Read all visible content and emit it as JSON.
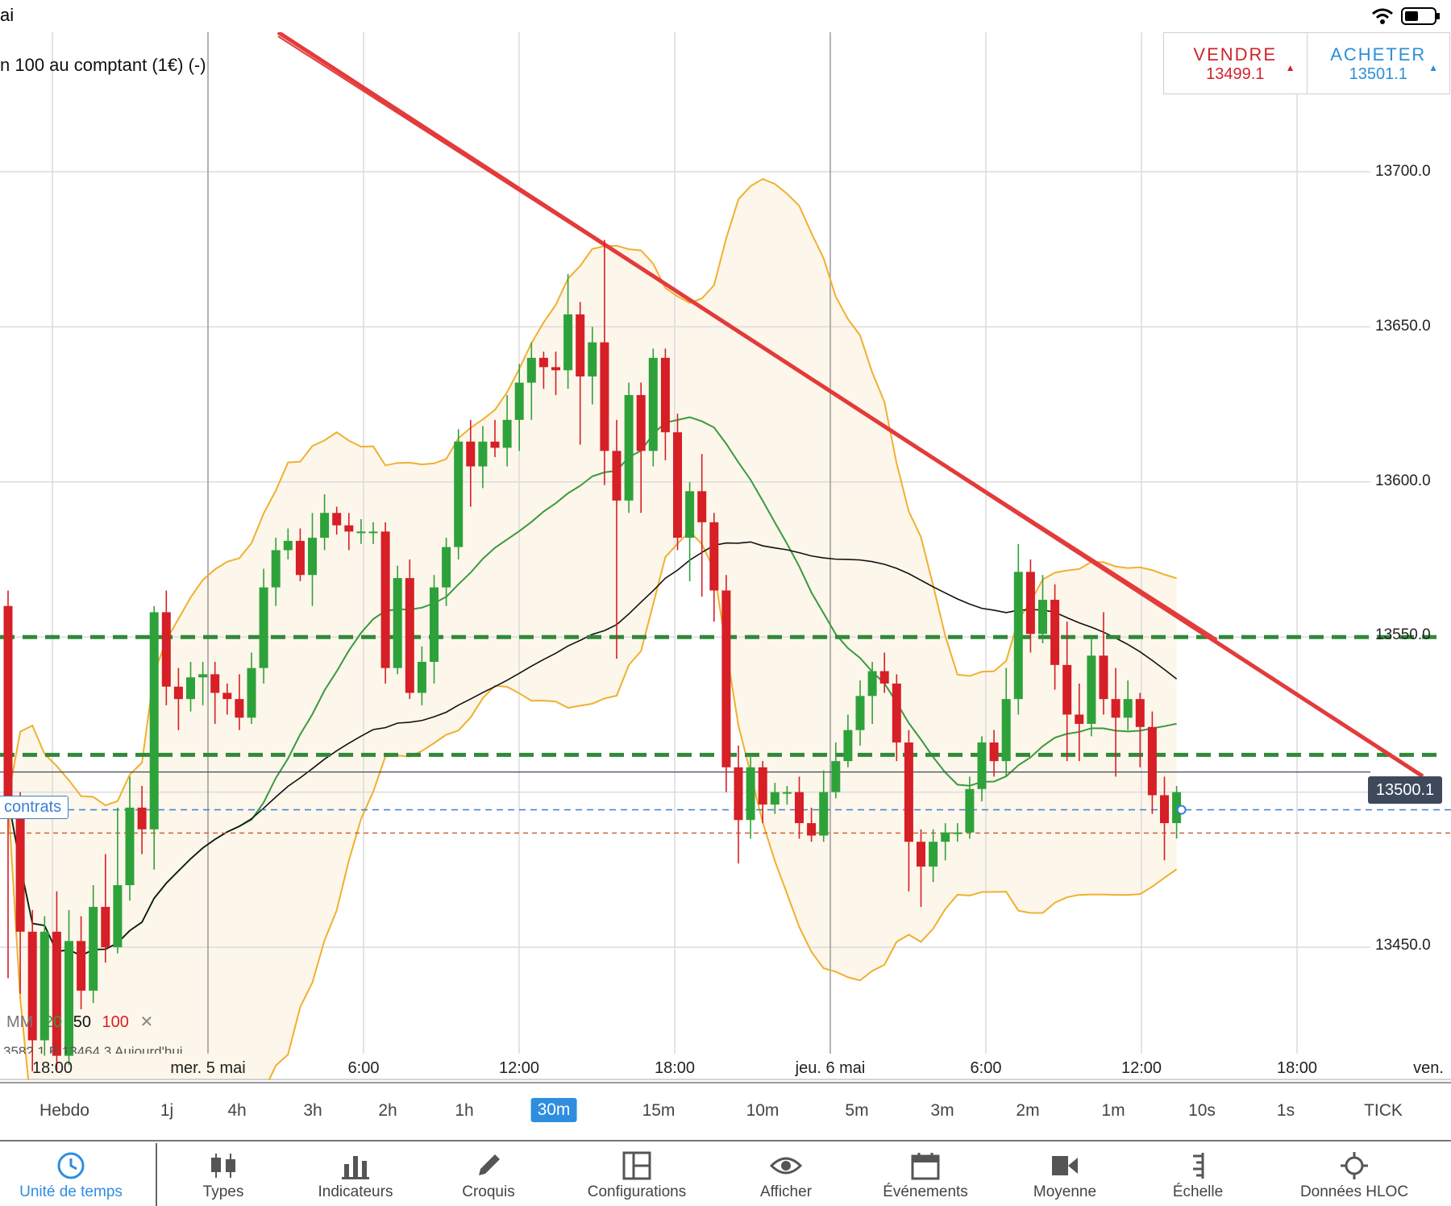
{
  "status": {
    "left_text": "ai"
  },
  "instrument": {
    "title": "n 100 au comptant (1€) (-)"
  },
  "trade": {
    "sell_label": "VENDRE",
    "sell_price": "13499.1",
    "buy_label": "ACHETER",
    "buy_price": "13501.1"
  },
  "current_price": "13500.1",
  "contracts_label": "contrats",
  "moving_averages": {
    "label": "MM",
    "p20": "20",
    "p50": "50",
    "p100": "100"
  },
  "info_line": "3582.1   B 13464.3   Aujourd'hui",
  "colors": {
    "up": "#2ea23a",
    "down": "#d61f26",
    "bollinger": "#f0b030",
    "ma20": "#3a9a40",
    "ma50": "#111111",
    "trend": "#e33b3b",
    "support": "#2f8a3a",
    "accent": "#2f8de0"
  },
  "chart_data": {
    "type": "candlestick",
    "y_ticks": [
      "13700.0",
      "13650.0",
      "13600.0",
      "13550.0",
      "13450.0"
    ],
    "x_ticks": [
      "18:00",
      "mer. 5 mai",
      "6:00",
      "12:00",
      "18:00",
      "jeu. 6 mai",
      "6:00",
      "12:00",
      "18:00",
      "ven."
    ],
    "ylim": [
      13410,
      13745
    ],
    "horizontal_levels": [
      13550,
      13512
    ],
    "position_level": 13494.3,
    "stop_level": 13486.8,
    "candles": [
      [
        13560,
        13498,
        13565,
        13440
      ],
      [
        13498,
        13455,
        13500,
        13435
      ],
      [
        13455,
        13420,
        13462,
        13410
      ],
      [
        13420,
        13455,
        13460,
        13415
      ],
      [
        13455,
        13415,
        13468,
        13410
      ],
      [
        13415,
        13452,
        13462,
        13412
      ],
      [
        13452,
        13436,
        13460,
        13430
      ],
      [
        13436,
        13463,
        13470,
        13432
      ],
      [
        13463,
        13450,
        13480,
        13445
      ],
      [
        13450,
        13470,
        13495,
        13448
      ],
      [
        13470,
        13495,
        13505,
        13465
      ],
      [
        13495,
        13488,
        13502,
        13480
      ],
      [
        13488,
        13558,
        13560,
        13475
      ],
      [
        13558,
        13534,
        13565,
        13528
      ],
      [
        13534,
        13530,
        13540,
        13520
      ],
      [
        13530,
        13537,
        13542,
        13526
      ],
      [
        13537,
        13538,
        13542,
        13528
      ],
      [
        13538,
        13532,
        13542,
        13522
      ],
      [
        13532,
        13530,
        13535,
        13525
      ],
      [
        13530,
        13524,
        13538,
        13520
      ],
      [
        13524,
        13540,
        13545,
        13522
      ],
      [
        13540,
        13566,
        13572,
        13535
      ],
      [
        13566,
        13578,
        13582,
        13560
      ],
      [
        13578,
        13581,
        13585,
        13575
      ],
      [
        13581,
        13570,
        13585,
        13568
      ],
      [
        13570,
        13582,
        13590,
        13560
      ],
      [
        13582,
        13590,
        13596,
        13578
      ],
      [
        13590,
        13586,
        13592,
        13583
      ],
      [
        13586,
        13584,
        13590,
        13578
      ],
      [
        13584,
        13584,
        13588,
        13580
      ],
      [
        13584,
        13584,
        13587,
        13580
      ],
      [
        13584,
        13540,
        13587,
        13535
      ],
      [
        13540,
        13569,
        13573,
        13538
      ],
      [
        13569,
        13532,
        13575,
        13530
      ],
      [
        13532,
        13542,
        13547,
        13528
      ],
      [
        13542,
        13566,
        13570,
        13535
      ],
      [
        13566,
        13579,
        13582,
        13560
      ],
      [
        13579,
        13613,
        13617,
        13575
      ],
      [
        13613,
        13605,
        13620,
        13592
      ],
      [
        13605,
        13613,
        13618,
        13598
      ],
      [
        13613,
        13611,
        13620,
        13608
      ],
      [
        13611,
        13620,
        13628,
        13605
      ],
      [
        13620,
        13632,
        13638,
        13610
      ],
      [
        13632,
        13640,
        13645,
        13620
      ],
      [
        13640,
        13637,
        13642,
        13630
      ],
      [
        13637,
        13636,
        13642,
        13628
      ],
      [
        13636,
        13654,
        13667,
        13630
      ],
      [
        13654,
        13634,
        13658,
        13612
      ],
      [
        13634,
        13645,
        13650,
        13625
      ],
      [
        13645,
        13610,
        13678,
        13599
      ],
      [
        13610,
        13594,
        13620,
        13543
      ],
      [
        13594,
        13628,
        13632,
        13590
      ],
      [
        13628,
        13610,
        13632,
        13590
      ],
      [
        13610,
        13640,
        13643,
        13605
      ],
      [
        13640,
        13616,
        13643,
        13607
      ],
      [
        13616,
        13582,
        13622,
        13578
      ],
      [
        13582,
        13597,
        13600,
        13568
      ],
      [
        13597,
        13587,
        13609,
        13563
      ],
      [
        13587,
        13565,
        13590,
        13555
      ],
      [
        13565,
        13508,
        13570,
        13500
      ],
      [
        13508,
        13491,
        13515,
        13477
      ],
      [
        13491,
        13508,
        13512,
        13485
      ],
      [
        13508,
        13496,
        13510,
        13490
      ],
      [
        13496,
        13500,
        13503,
        13493
      ],
      [
        13500,
        13500,
        13502,
        13496
      ],
      [
        13500,
        13490,
        13505,
        13485
      ],
      [
        13490,
        13486,
        13495,
        13484
      ],
      [
        13486,
        13500,
        13507,
        13484
      ],
      [
        13500,
        13510,
        13516,
        13498
      ],
      [
        13510,
        13520,
        13525,
        13508
      ],
      [
        13520,
        13531,
        13536,
        13515
      ],
      [
        13531,
        13539,
        13542,
        13522
      ],
      [
        13539,
        13535,
        13545,
        13532
      ],
      [
        13535,
        13516,
        13538,
        13510
      ],
      [
        13516,
        13484,
        13520,
        13468
      ],
      [
        13484,
        13476,
        13488,
        13463
      ],
      [
        13476,
        13484,
        13488,
        13471
      ],
      [
        13484,
        13487,
        13490,
        13478
      ],
      [
        13487,
        13487,
        13490,
        13484
      ],
      [
        13487,
        13501,
        13505,
        13485
      ],
      [
        13501,
        13516,
        13518,
        13497
      ],
      [
        13516,
        13510,
        13520,
        13505
      ],
      [
        13510,
        13530,
        13540,
        13505
      ],
      [
        13530,
        13571,
        13580,
        13525
      ],
      [
        13571,
        13551,
        13575,
        13545
      ],
      [
        13551,
        13562,
        13570,
        13548
      ],
      [
        13562,
        13541,
        13567,
        13533
      ],
      [
        13541,
        13525,
        13555,
        13510
      ],
      [
        13525,
        13522,
        13535,
        13510
      ],
      [
        13522,
        13544,
        13550,
        13518
      ],
      [
        13544,
        13530,
        13558,
        13525
      ],
      [
        13530,
        13524,
        13540,
        13505
      ],
      [
        13524,
        13530,
        13536,
        13520
      ],
      [
        13530,
        13521,
        13532,
        13508
      ],
      [
        13521,
        13499,
        13526,
        13493
      ],
      [
        13499,
        13490,
        13505,
        13478
      ],
      [
        13490,
        13500,
        13502,
        13485
      ]
    ]
  },
  "timeframes": [
    "Hebdo",
    "1j",
    "4h",
    "3h",
    "2h",
    "1h",
    "30m",
    "15m",
    "10m",
    "5m",
    "3m",
    "2m",
    "1m",
    "10s",
    "1s",
    "TICK"
  ],
  "active_timeframe": "30m",
  "toolbar": {
    "time_unit": "Unité de temps",
    "types": "Types",
    "indicators": "Indicateurs",
    "sketch": "Croquis",
    "configurations": "Configurations",
    "display": "Afficher",
    "events": "Événements",
    "average": "Moyenne",
    "scale": "Échelle",
    "hloc": "Données HLOC"
  },
  "icons": {
    "wifi": "wifi-icon",
    "battery": "battery-icon",
    "clock": "clock-icon",
    "candles": "candles-icon",
    "bars": "bar-chart-icon",
    "pencil": "pencil-icon",
    "layout": "layout-icon",
    "eye": "eye-icon",
    "calendar": "calendar-icon",
    "average": "camera-icon",
    "ruler": "ruler-icon",
    "crosshair": "crosshair-icon"
  }
}
